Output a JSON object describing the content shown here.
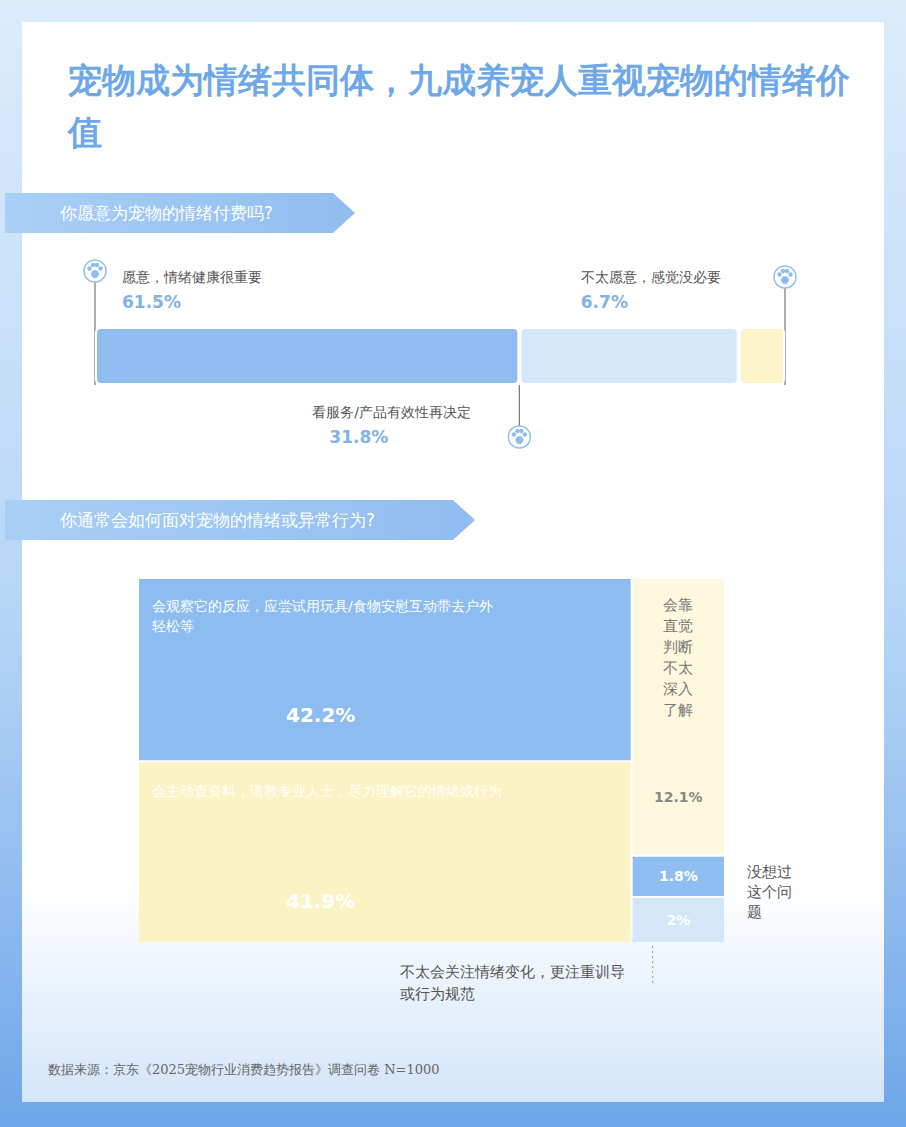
{
  "title": "宠物成为情绪共同体，九成养宠人重视宠物的情绪价值",
  "source": "数据来源：京东《2025宠物行业消费趋势报告》调查问卷 N=1000",
  "chart_data": [
    {
      "type": "bar",
      "title": "你愿意为宠物的情绪付费吗?",
      "orientation": "horizontal",
      "stacked": true,
      "categories": [
        "愿意，情绪健康很重要",
        "看服务/产品有效性再决定",
        "不太愿意，感觉没必要"
      ],
      "values": [
        61.5,
        31.8,
        6.7
      ],
      "value_labels": [
        "61.5%",
        "31.8%",
        "6.7%"
      ],
      "colors": [
        "#90bdf0",
        "#d3e8f9",
        "#fcf3c8"
      ],
      "xlim": [
        0,
        100
      ],
      "data_labels": true,
      "tick_labels": false
    },
    {
      "type": "treemap",
      "title": "你通常会如何面对宠物的情绪或异常行为?",
      "categories": [
        "会观察它的反应，应尝试用玩具/食物安慰互动带去户外轻松等",
        "会主动查资料，请教专业人士，尽力理解它的情绪或行为",
        "会靠直觉判断不太深入了解",
        "没想过这个问题",
        "不太会关注情绪变化，更注重训导或行为规范"
      ],
      "values": [
        42.2,
        41.9,
        12.1,
        1.8,
        2
      ],
      "value_labels": [
        "42.2%",
        "41.9%",
        "12.1%",
        "1.8%",
        "2%"
      ],
      "colors": [
        "#8dbcf0",
        "#fbf3c3",
        "#fdf8de",
        "#8fbef0",
        "#d3e7f9"
      ],
      "data_labels": true
    }
  ]
}
